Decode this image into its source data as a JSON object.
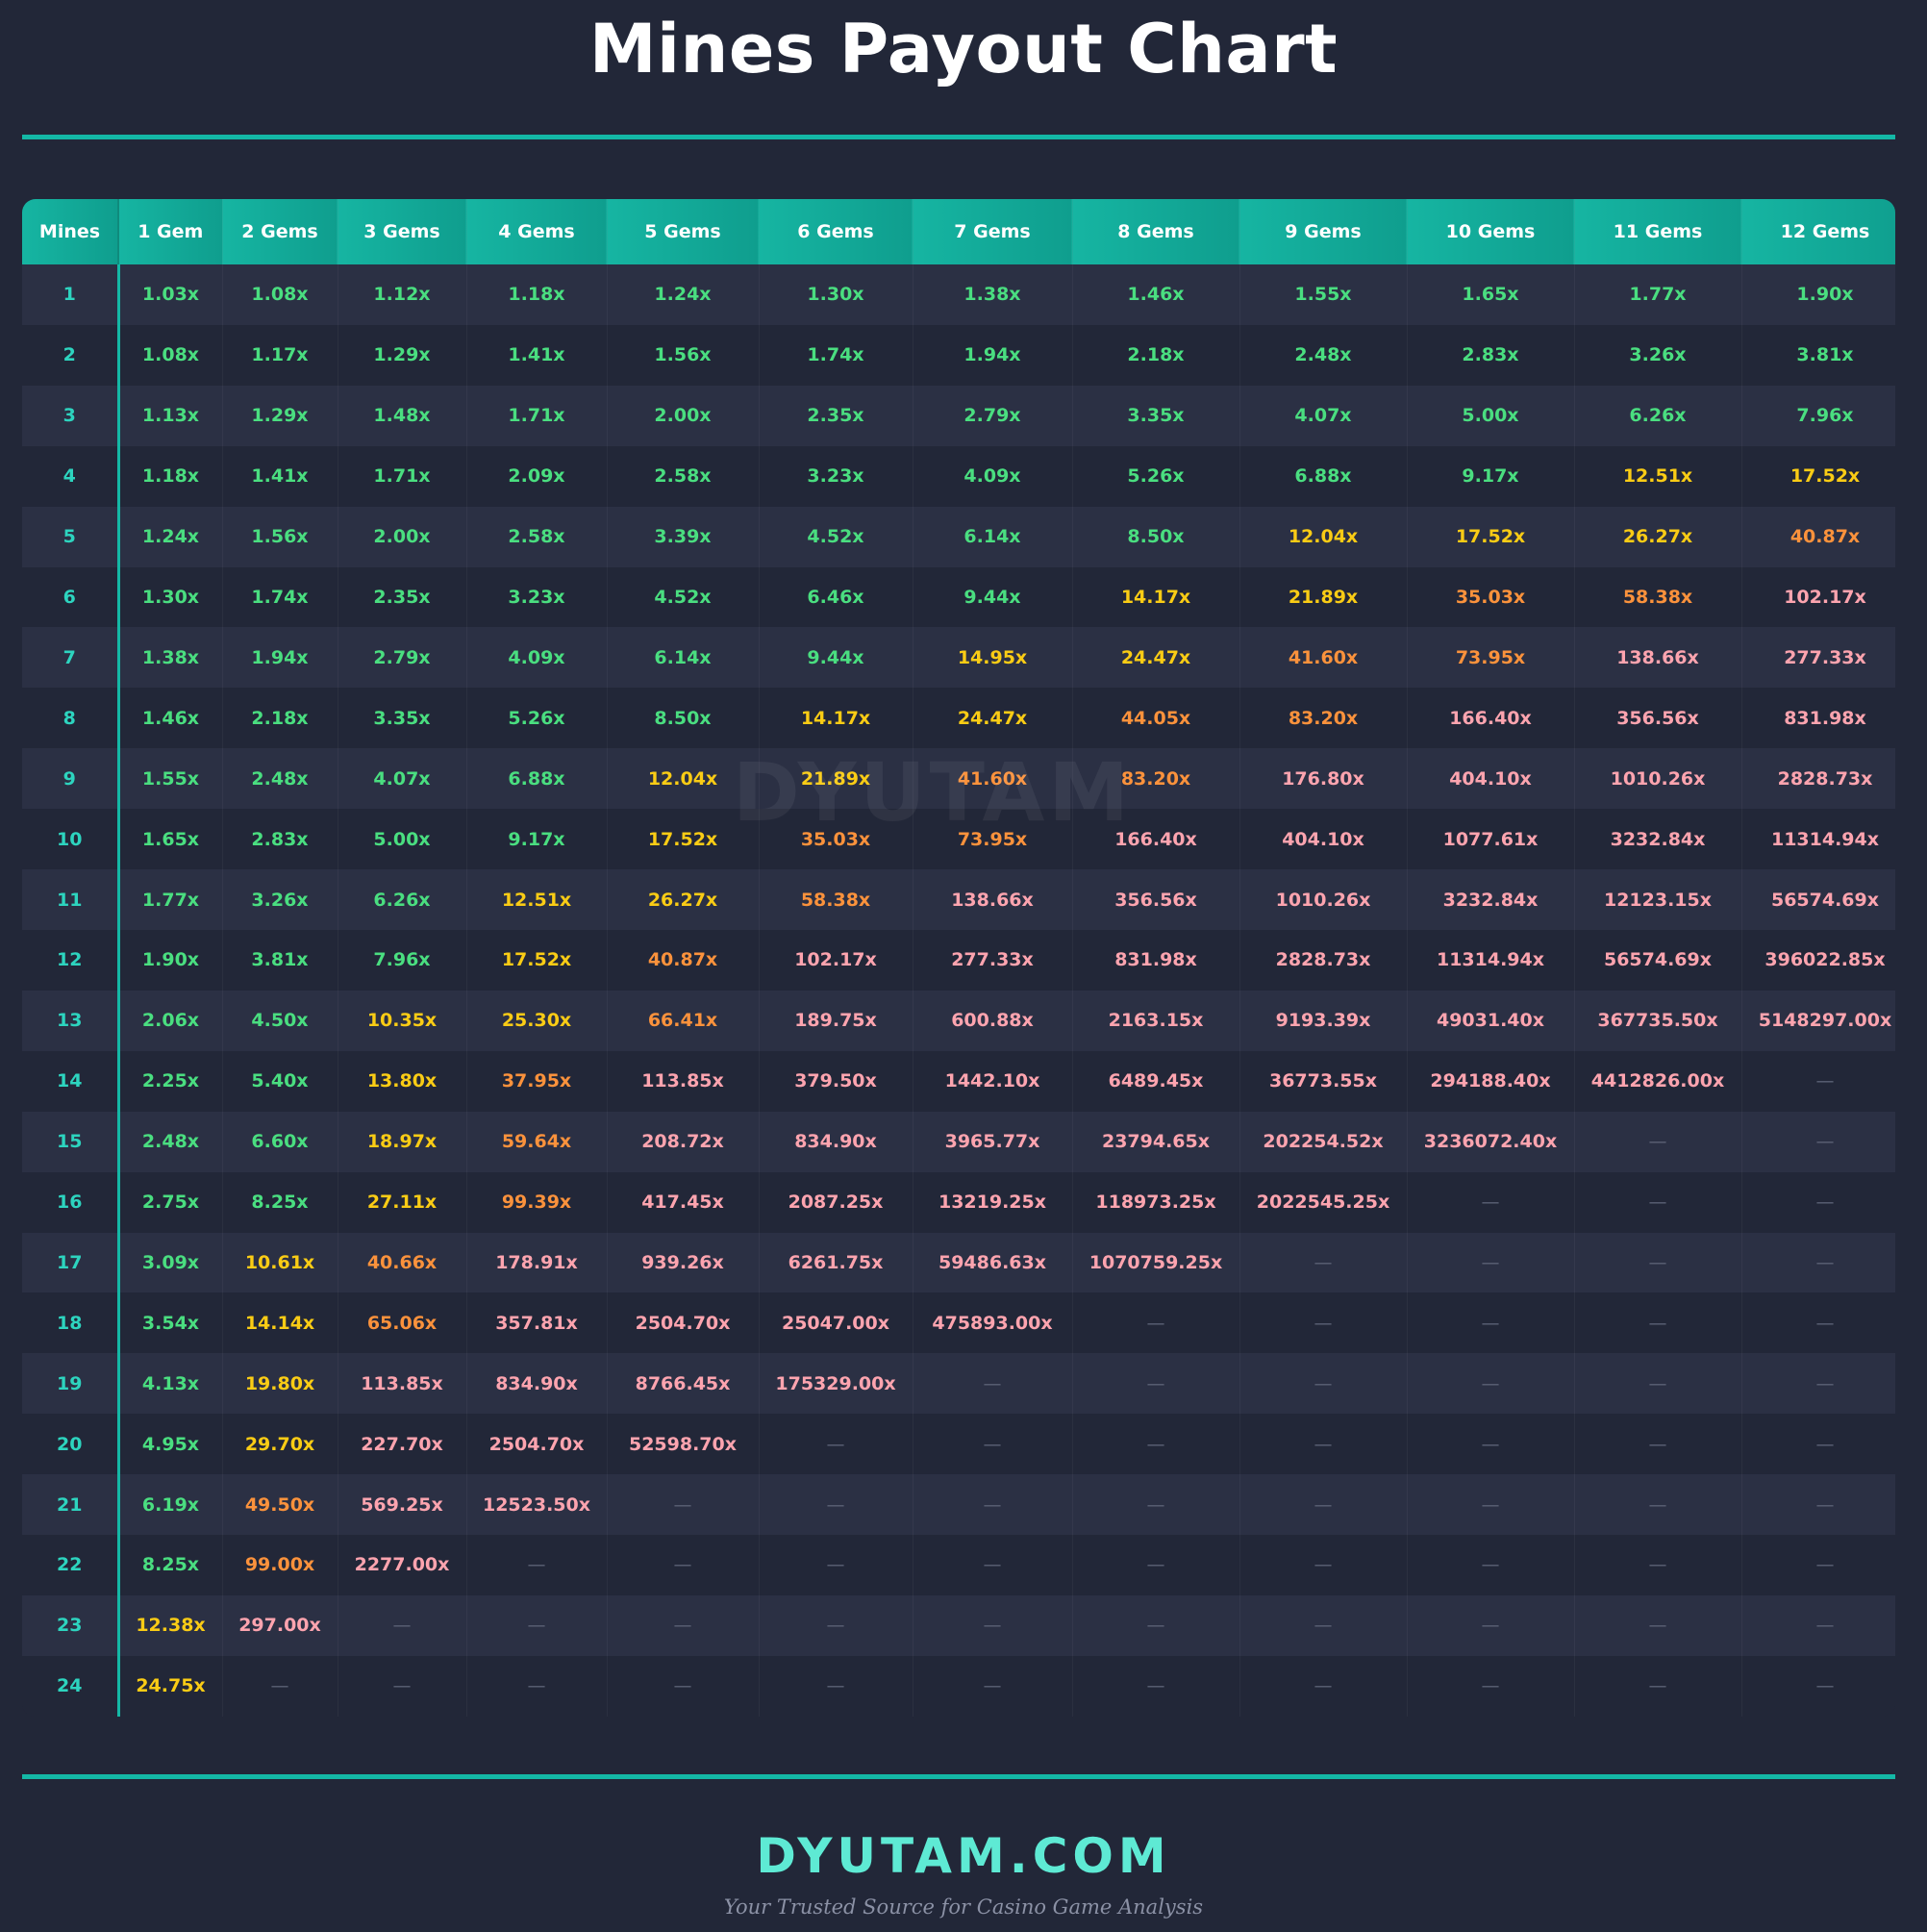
{
  "page": {
    "title": "Mines Payout Chart",
    "watermark": "DYUTAM",
    "brand": "DYUTAM.COM",
    "tagline": "Your Trusted Source for Casino Game Analysis"
  },
  "colors": {
    "accent": "#14b8a6",
    "background": "#222738",
    "low": "#4ade80",
    "medium": "#facc15",
    "high": "#fb923c",
    "extreme": "#fda4af"
  },
  "chart_data": {
    "type": "table",
    "row_header": "Mines",
    "columns": [
      "1 Gem",
      "2 Gems",
      "3 Gems",
      "4 Gems",
      "5 Gems",
      "6 Gems",
      "7 Gems",
      "8 Gems",
      "9 Gems",
      "10 Gems",
      "11 Gems",
      "12 Gems"
    ],
    "empty_symbol": "—",
    "rows": [
      {
        "mines": "1",
        "values": [
          "1.03x",
          "1.08x",
          "1.12x",
          "1.18x",
          "1.24x",
          "1.30x",
          "1.38x",
          "1.46x",
          "1.55x",
          "1.65x",
          "1.77x",
          "1.90x"
        ]
      },
      {
        "mines": "2",
        "values": [
          "1.08x",
          "1.17x",
          "1.29x",
          "1.41x",
          "1.56x",
          "1.74x",
          "1.94x",
          "2.18x",
          "2.48x",
          "2.83x",
          "3.26x",
          "3.81x"
        ]
      },
      {
        "mines": "3",
        "values": [
          "1.13x",
          "1.29x",
          "1.48x",
          "1.71x",
          "2.00x",
          "2.35x",
          "2.79x",
          "3.35x",
          "4.07x",
          "5.00x",
          "6.26x",
          "7.96x"
        ]
      },
      {
        "mines": "4",
        "values": [
          "1.18x",
          "1.41x",
          "1.71x",
          "2.09x",
          "2.58x",
          "3.23x",
          "4.09x",
          "5.26x",
          "6.88x",
          "9.17x",
          "12.51x",
          "17.52x"
        ]
      },
      {
        "mines": "5",
        "values": [
          "1.24x",
          "1.56x",
          "2.00x",
          "2.58x",
          "3.39x",
          "4.52x",
          "6.14x",
          "8.50x",
          "12.04x",
          "17.52x",
          "26.27x",
          "40.87x"
        ]
      },
      {
        "mines": "6",
        "values": [
          "1.30x",
          "1.74x",
          "2.35x",
          "3.23x",
          "4.52x",
          "6.46x",
          "9.44x",
          "14.17x",
          "21.89x",
          "35.03x",
          "58.38x",
          "102.17x"
        ]
      },
      {
        "mines": "7",
        "values": [
          "1.38x",
          "1.94x",
          "2.79x",
          "4.09x",
          "6.14x",
          "9.44x",
          "14.95x",
          "24.47x",
          "41.60x",
          "73.95x",
          "138.66x",
          "277.33x"
        ]
      },
      {
        "mines": "8",
        "values": [
          "1.46x",
          "2.18x",
          "3.35x",
          "5.26x",
          "8.50x",
          "14.17x",
          "24.47x",
          "44.05x",
          "83.20x",
          "166.40x",
          "356.56x",
          "831.98x"
        ]
      },
      {
        "mines": "9",
        "values": [
          "1.55x",
          "2.48x",
          "4.07x",
          "6.88x",
          "12.04x",
          "21.89x",
          "41.60x",
          "83.20x",
          "176.80x",
          "404.10x",
          "1010.26x",
          "2828.73x"
        ]
      },
      {
        "mines": "10",
        "values": [
          "1.65x",
          "2.83x",
          "5.00x",
          "9.17x",
          "17.52x",
          "35.03x",
          "73.95x",
          "166.40x",
          "404.10x",
          "1077.61x",
          "3232.84x",
          "11314.94x"
        ]
      },
      {
        "mines": "11",
        "values": [
          "1.77x",
          "3.26x",
          "6.26x",
          "12.51x",
          "26.27x",
          "58.38x",
          "138.66x",
          "356.56x",
          "1010.26x",
          "3232.84x",
          "12123.15x",
          "56574.69x"
        ]
      },
      {
        "mines": "12",
        "values": [
          "1.90x",
          "3.81x",
          "7.96x",
          "17.52x",
          "40.87x",
          "102.17x",
          "277.33x",
          "831.98x",
          "2828.73x",
          "11314.94x",
          "56574.69x",
          "396022.85x"
        ]
      },
      {
        "mines": "13",
        "values": [
          "2.06x",
          "4.50x",
          "10.35x",
          "25.30x",
          "66.41x",
          "189.75x",
          "600.88x",
          "2163.15x",
          "9193.39x",
          "49031.40x",
          "367735.50x",
          "5148297.00x"
        ]
      },
      {
        "mines": "14",
        "values": [
          "2.25x",
          "5.40x",
          "13.80x",
          "37.95x",
          "113.85x",
          "379.50x",
          "1442.10x",
          "6489.45x",
          "36773.55x",
          "294188.40x",
          "4412826.00x",
          null
        ]
      },
      {
        "mines": "15",
        "values": [
          "2.48x",
          "6.60x",
          "18.97x",
          "59.64x",
          "208.72x",
          "834.90x",
          "3965.77x",
          "23794.65x",
          "202254.52x",
          "3236072.40x",
          null,
          null
        ]
      },
      {
        "mines": "16",
        "values": [
          "2.75x",
          "8.25x",
          "27.11x",
          "99.39x",
          "417.45x",
          "2087.25x",
          "13219.25x",
          "118973.25x",
          "2022545.25x",
          null,
          null,
          null
        ]
      },
      {
        "mines": "17",
        "values": [
          "3.09x",
          "10.61x",
          "40.66x",
          "178.91x",
          "939.26x",
          "6261.75x",
          "59486.63x",
          "1070759.25x",
          null,
          null,
          null,
          null
        ]
      },
      {
        "mines": "18",
        "values": [
          "3.54x",
          "14.14x",
          "65.06x",
          "357.81x",
          "2504.70x",
          "25047.00x",
          "475893.00x",
          null,
          null,
          null,
          null,
          null
        ]
      },
      {
        "mines": "19",
        "values": [
          "4.13x",
          "19.80x",
          "113.85x",
          "834.90x",
          "8766.45x",
          "175329.00x",
          null,
          null,
          null,
          null,
          null,
          null
        ]
      },
      {
        "mines": "20",
        "values": [
          "4.95x",
          "29.70x",
          "227.70x",
          "2504.70x",
          "52598.70x",
          null,
          null,
          null,
          null,
          null,
          null,
          null
        ]
      },
      {
        "mines": "21",
        "values": [
          "6.19x",
          "49.50x",
          "569.25x",
          "12523.50x",
          null,
          null,
          null,
          null,
          null,
          null,
          null,
          null
        ]
      },
      {
        "mines": "22",
        "values": [
          "8.25x",
          "99.00x",
          "2277.00x",
          null,
          null,
          null,
          null,
          null,
          null,
          null,
          null,
          null
        ]
      },
      {
        "mines": "23",
        "values": [
          "12.38x",
          "297.00x",
          null,
          null,
          null,
          null,
          null,
          null,
          null,
          null,
          null,
          null
        ]
      },
      {
        "mines": "24",
        "values": [
          "24.75x",
          null,
          null,
          null,
          null,
          null,
          null,
          null,
          null,
          null,
          null,
          null
        ]
      }
    ]
  }
}
